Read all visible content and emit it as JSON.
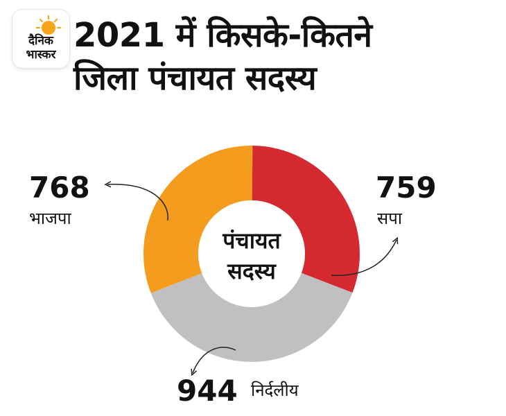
{
  "brand": {
    "logo_text_line1": "दैनिक",
    "logo_text_line2": "भास्कर"
  },
  "header": {
    "title_line1": "2021 में किसके-कितने",
    "title_line2": "जिला पंचायत सदस्य"
  },
  "colors": {
    "bjp": "#F39C1D",
    "sp": "#D42A2F",
    "independent": "#C0C0C3",
    "logo_sun": "#F7A51B"
  },
  "chart_data": {
    "type": "pie",
    "donut": true,
    "center_label_line1": "पंचायत",
    "center_label_line2": "सदस्य",
    "slices": [
      {
        "label": "भाजपा",
        "value": 768,
        "color": "#F39C1D"
      },
      {
        "label": "सपा",
        "value": 759,
        "color": "#D42A2F"
      },
      {
        "label": "निर्दलीय",
        "value": 944,
        "color": "#C0C0C3"
      }
    ]
  }
}
